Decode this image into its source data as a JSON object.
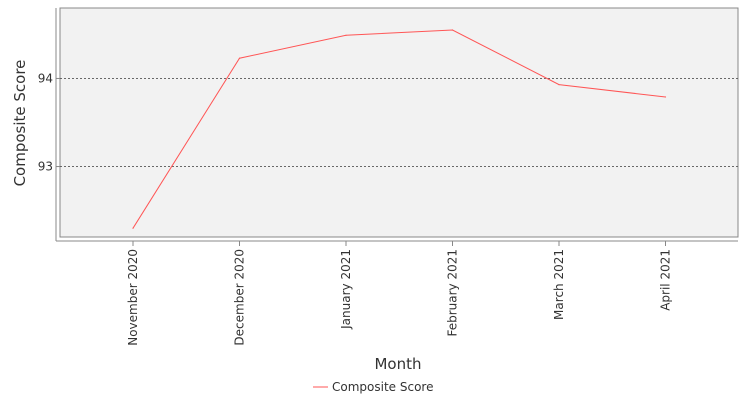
{
  "chart_data": {
    "type": "line",
    "title": "",
    "xlabel": "Month",
    "ylabel": "Composite Score",
    "categories": [
      "November 2020",
      "December 2020",
      "January 2021",
      "February 2021",
      "March 2021",
      "April 2021"
    ],
    "series": [
      {
        "name": "Composite Score",
        "values": [
          92.3,
          94.23,
          94.49,
          94.55,
          93.93,
          93.79
        ],
        "color": "#ff5555"
      }
    ],
    "ylim": [
      92.2,
      94.8
    ],
    "yticks": [
      93,
      94
    ],
    "grid": true,
    "legend_position": "bottom-center"
  },
  "colors": {
    "plot_background": "#f2f2f2",
    "gridline": "#555555",
    "axis": "#888888"
  }
}
